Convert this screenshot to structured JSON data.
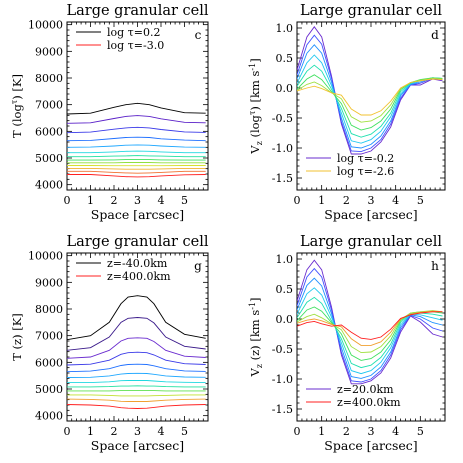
{
  "figure": {
    "panels": [
      {
        "id": "c",
        "title": "Large granular cell",
        "panel_letter": "c",
        "xlabel": "Space [arcsec]",
        "ylabel_parts": [
          "T (log",
          "τ",
          ") [K]"
        ],
        "xlim": [
          0,
          6
        ],
        "ylim": [
          3800,
          10100
        ],
        "xticks": [
          0,
          1,
          2,
          3,
          4,
          5
        ],
        "yticks": [
          4000,
          5000,
          6000,
          7000,
          8000,
          9000,
          10000
        ],
        "legend": [
          {
            "label": "log τ=0.2",
            "color": "#000000"
          },
          {
            "label": "log τ=-3.0",
            "color": "#ff2020"
          }
        ]
      },
      {
        "id": "d",
        "title": "Large granular cell",
        "panel_letter": "d",
        "xlabel": "Space [arcsec]",
        "ylabel_parts": [
          "V",
          "z",
          " (log",
          "τ",
          ") [km s",
          "-1",
          "]"
        ],
        "xlim": [
          0,
          6
        ],
        "ylim": [
          -1.7,
          1.1
        ],
        "xticks": [
          0,
          1,
          2,
          3,
          4,
          5
        ],
        "yticks": [
          -1.5,
          -1.0,
          -0.5,
          0.0,
          0.5,
          1.0
        ],
        "legend": [
          {
            "label": "log τ=-0.2",
            "color": "#6a2ccf"
          },
          {
            "label": "log τ=-2.6",
            "color": "#f2c230"
          }
        ]
      },
      {
        "id": "g",
        "title": "Large granular cell",
        "panel_letter": "g",
        "xlabel": "Space [arcsec]",
        "ylabel_parts": [
          "T (z) [K]"
        ],
        "xlim": [
          0,
          6
        ],
        "ylim": [
          3800,
          10100
        ],
        "xticks": [
          0,
          1,
          2,
          3,
          4,
          5
        ],
        "yticks": [
          4000,
          5000,
          6000,
          7000,
          8000,
          9000,
          10000
        ],
        "legend": [
          {
            "label": "z=-40.0km",
            "color": "#000000"
          },
          {
            "label": "z=400.0km",
            "color": "#ff2020"
          }
        ]
      },
      {
        "id": "h",
        "title": "Large granular cell",
        "panel_letter": "h",
        "xlabel": "Space [arcsec]",
        "ylabel_parts": [
          "V",
          "z",
          " (z) [km s",
          "-1",
          "]"
        ],
        "xlim": [
          0,
          6
        ],
        "ylim": [
          -1.7,
          1.1
        ],
        "xticks": [
          0,
          1,
          2,
          3,
          4,
          5
        ],
        "yticks": [
          -1.5,
          -1.0,
          -0.5,
          0.0,
          0.5,
          1.0
        ],
        "legend": [
          {
            "label": "z=20.0km",
            "color": "#6a2ccf"
          },
          {
            "label": "z=400.0km",
            "color": "#ff2020"
          }
        ]
      }
    ]
  },
  "chart_data": [
    {
      "type": "line",
      "panel": "c",
      "x": [
        0,
        1,
        2,
        2.5,
        3,
        3.5,
        4,
        5,
        5.9
      ],
      "series": [
        {
          "color": "#000000",
          "values": [
            6650,
            6680,
            6900,
            7000,
            7050,
            7000,
            6880,
            6700,
            6680
          ]
        },
        {
          "color": "#5a20c8",
          "values": [
            6300,
            6320,
            6480,
            6560,
            6590,
            6560,
            6470,
            6340,
            6320
          ]
        },
        {
          "color": "#3a3ae8",
          "values": [
            5950,
            5970,
            6080,
            6130,
            6150,
            6130,
            6070,
            5980,
            5960
          ]
        },
        {
          "color": "#2070ff",
          "values": [
            5650,
            5660,
            5730,
            5770,
            5780,
            5770,
            5720,
            5670,
            5650
          ]
        },
        {
          "color": "#20a8ff",
          "values": [
            5400,
            5410,
            5450,
            5480,
            5490,
            5480,
            5450,
            5410,
            5400
          ]
        },
        {
          "color": "#20d8e0",
          "values": [
            5200,
            5200,
            5230,
            5250,
            5260,
            5250,
            5230,
            5200,
            5200
          ]
        },
        {
          "color": "#20e0a0",
          "values": [
            5050,
            5050,
            5070,
            5080,
            5090,
            5080,
            5070,
            5050,
            5050
          ]
        },
        {
          "color": "#40e060",
          "values": [
            4920,
            4920,
            4930,
            4940,
            4940,
            4940,
            4930,
            4920,
            4920
          ]
        },
        {
          "color": "#90e040",
          "values": [
            4820,
            4820,
            4820,
            4830,
            4830,
            4830,
            4820,
            4820,
            4820
          ]
        },
        {
          "color": "#d8e030",
          "values": [
            4720,
            4720,
            4710,
            4710,
            4710,
            4710,
            4710,
            4720,
            4720
          ]
        },
        {
          "color": "#f0b030",
          "values": [
            4610,
            4610,
            4590,
            4580,
            4580,
            4580,
            4590,
            4610,
            4610
          ]
        },
        {
          "color": "#f07030",
          "values": [
            4500,
            4500,
            4460,
            4440,
            4430,
            4440,
            4460,
            4500,
            4500
          ]
        },
        {
          "color": "#ff2020",
          "values": [
            4380,
            4380,
            4330,
            4300,
            4290,
            4300,
            4330,
            4370,
            4380
          ]
        }
      ]
    },
    {
      "type": "line",
      "panel": "d",
      "x": [
        0,
        0.4,
        0.7,
        1.0,
        1.4,
        1.8,
        2.2,
        2.6,
        3.0,
        3.4,
        3.8,
        4.2,
        4.6,
        5.0,
        5.5,
        5.9
      ],
      "series": [
        {
          "color": "#6a2ccf",
          "values": [
            0.3,
            0.85,
            1.02,
            0.85,
            0.2,
            -0.6,
            -1.1,
            -1.1,
            -1.05,
            -0.9,
            -0.65,
            -0.2,
            0.05,
            0.05,
            0.15,
            0.12
          ]
        },
        {
          "color": "#4050ff",
          "values": [
            0.22,
            0.72,
            0.88,
            0.73,
            0.16,
            -0.56,
            -1.05,
            -1.06,
            -1.0,
            -0.86,
            -0.6,
            -0.17,
            0.05,
            0.08,
            0.16,
            0.14
          ]
        },
        {
          "color": "#2090ff",
          "values": [
            0.15,
            0.58,
            0.72,
            0.58,
            0.1,
            -0.5,
            -0.98,
            -1.0,
            -0.94,
            -0.8,
            -0.55,
            -0.13,
            0.06,
            0.1,
            0.17,
            0.15
          ]
        },
        {
          "color": "#20c8f0",
          "values": [
            0.08,
            0.42,
            0.55,
            0.42,
            0.04,
            -0.42,
            -0.88,
            -0.92,
            -0.86,
            -0.72,
            -0.48,
            -0.1,
            0.07,
            0.12,
            0.17,
            0.16
          ]
        },
        {
          "color": "#20e0b0",
          "values": [
            0.03,
            0.28,
            0.38,
            0.28,
            -0.02,
            -0.34,
            -0.76,
            -0.82,
            -0.77,
            -0.64,
            -0.42,
            -0.06,
            0.08,
            0.13,
            0.17,
            0.16
          ]
        },
        {
          "color": "#40e060",
          "values": [
            -0.02,
            0.15,
            0.22,
            0.14,
            -0.06,
            -0.26,
            -0.62,
            -0.7,
            -0.66,
            -0.55,
            -0.35,
            -0.03,
            0.09,
            0.14,
            0.17,
            0.16
          ]
        },
        {
          "color": "#a0e040",
          "values": [
            -0.04,
            0.06,
            0.1,
            0.04,
            -0.08,
            -0.18,
            -0.48,
            -0.57,
            -0.55,
            -0.46,
            -0.28,
            -0.01,
            0.09,
            0.13,
            0.16,
            0.15
          ]
        },
        {
          "color": "#f2c230",
          "values": [
            -0.05,
            0.0,
            0.03,
            -0.01,
            -0.08,
            -0.12,
            -0.35,
            -0.45,
            -0.45,
            -0.38,
            -0.22,
            0.0,
            0.09,
            0.12,
            0.15,
            0.14
          ]
        }
      ]
    },
    {
      "type": "line",
      "panel": "g",
      "x": [
        0,
        1,
        1.8,
        2.3,
        2.6,
        3.0,
        3.4,
        3.7,
        4.2,
        5,
        5.9
      ],
      "series": [
        {
          "color": "#000000",
          "values": [
            6850,
            7000,
            7500,
            8200,
            8450,
            8500,
            8450,
            8200,
            7500,
            7050,
            6900
          ]
        },
        {
          "color": "#3a1a8a",
          "values": [
            6450,
            6550,
            6950,
            7500,
            7650,
            7680,
            7650,
            7480,
            6950,
            6600,
            6500
          ]
        },
        {
          "color": "#6a2ccf",
          "values": [
            6150,
            6200,
            6450,
            6800,
            6900,
            6920,
            6900,
            6780,
            6450,
            6230,
            6180
          ]
        },
        {
          "color": "#3a3ae8",
          "values": [
            5900,
            5930,
            6080,
            6300,
            6360,
            6380,
            6360,
            6280,
            6080,
            5950,
            5920
          ]
        },
        {
          "color": "#2070ff",
          "values": [
            5650,
            5670,
            5760,
            5880,
            5920,
            5930,
            5920,
            5870,
            5760,
            5680,
            5660
          ]
        },
        {
          "color": "#20a8ff",
          "values": [
            5430,
            5440,
            5490,
            5560,
            5580,
            5590,
            5580,
            5550,
            5490,
            5450,
            5440
          ]
        },
        {
          "color": "#20d8e0",
          "values": [
            5240,
            5240,
            5270,
            5310,
            5320,
            5320,
            5320,
            5300,
            5270,
            5250,
            5240
          ]
        },
        {
          "color": "#20e0a0",
          "values": [
            5080,
            5080,
            5090,
            5110,
            5110,
            5120,
            5110,
            5110,
            5090,
            5080,
            5080
          ]
        },
        {
          "color": "#60e050",
          "values": [
            4930,
            4930,
            4930,
            4940,
            4940,
            4940,
            4940,
            4940,
            4930,
            4930,
            4930
          ]
        },
        {
          "color": "#c0e030",
          "values": [
            4780,
            4780,
            4760,
            4740,
            4740,
            4740,
            4740,
            4750,
            4760,
            4780,
            4780
          ]
        },
        {
          "color": "#f0a030",
          "values": [
            4620,
            4610,
            4580,
            4540,
            4530,
            4530,
            4530,
            4550,
            4580,
            4610,
            4620
          ]
        },
        {
          "color": "#ff2020",
          "values": [
            4420,
            4400,
            4360,
            4300,
            4280,
            4270,
            4280,
            4310,
            4360,
            4400,
            4420
          ]
        }
      ]
    },
    {
      "type": "line",
      "panel": "h",
      "x": [
        0,
        0.4,
        0.7,
        1.0,
        1.4,
        1.8,
        2.2,
        2.6,
        3.0,
        3.4,
        3.8,
        4.2,
        4.6,
        5.0,
        5.5,
        5.9
      ],
      "series": [
        {
          "color": "#6a2ccf",
          "values": [
            0.3,
            0.82,
            0.98,
            0.82,
            0.2,
            -0.6,
            -1.08,
            -1.08,
            -1.03,
            -0.9,
            -0.65,
            -0.22,
            0.05,
            -0.05,
            -0.25,
            -0.3
          ]
        },
        {
          "color": "#4050ff",
          "values": [
            0.22,
            0.7,
            0.84,
            0.7,
            0.15,
            -0.55,
            -1.03,
            -1.05,
            -1.0,
            -0.86,
            -0.6,
            -0.18,
            0.06,
            0.0,
            -0.15,
            -0.2
          ]
        },
        {
          "color": "#2090ff",
          "values": [
            0.15,
            0.56,
            0.68,
            0.55,
            0.09,
            -0.48,
            -0.96,
            -0.99,
            -0.94,
            -0.8,
            -0.55,
            -0.14,
            0.07,
            0.04,
            -0.06,
            -0.1
          ]
        },
        {
          "color": "#20c8f0",
          "values": [
            0.08,
            0.42,
            0.52,
            0.4,
            0.03,
            -0.4,
            -0.86,
            -0.91,
            -0.86,
            -0.72,
            -0.48,
            -0.1,
            0.08,
            0.07,
            0.02,
            -0.02
          ]
        },
        {
          "color": "#20e0b0",
          "values": [
            0.02,
            0.28,
            0.36,
            0.26,
            -0.03,
            -0.33,
            -0.74,
            -0.81,
            -0.77,
            -0.64,
            -0.42,
            -0.06,
            0.09,
            0.1,
            0.08,
            0.05
          ]
        },
        {
          "color": "#40e060",
          "values": [
            -0.03,
            0.15,
            0.2,
            0.13,
            -0.06,
            -0.25,
            -0.6,
            -0.69,
            -0.66,
            -0.55,
            -0.35,
            -0.03,
            0.1,
            0.12,
            0.12,
            0.1
          ]
        },
        {
          "color": "#a0e040",
          "values": [
            -0.05,
            0.04,
            0.08,
            0.02,
            -0.08,
            -0.18,
            -0.46,
            -0.56,
            -0.55,
            -0.46,
            -0.28,
            -0.01,
            0.1,
            0.12,
            0.14,
            0.12
          ]
        },
        {
          "color": "#f0a030",
          "values": [
            -0.07,
            -0.02,
            0.0,
            -0.03,
            -0.09,
            -0.13,
            -0.33,
            -0.44,
            -0.44,
            -0.38,
            -0.22,
            0.0,
            0.08,
            0.11,
            0.13,
            0.12
          ]
        },
        {
          "color": "#ff2020",
          "values": [
            -0.12,
            -0.06,
            -0.04,
            -0.08,
            -0.12,
            -0.1,
            -0.22,
            -0.32,
            -0.34,
            -0.3,
            -0.17,
            0.01,
            0.07,
            0.1,
            0.12,
            0.12
          ]
        }
      ]
    }
  ]
}
